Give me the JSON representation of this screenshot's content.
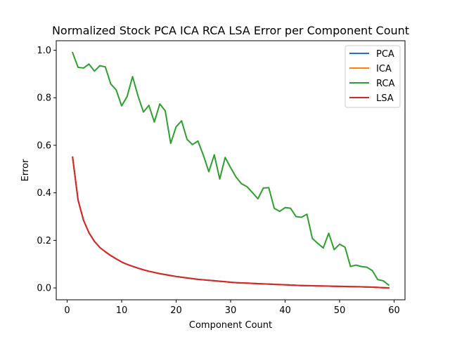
{
  "chart_data": {
    "type": "line",
    "title": "Normalized Stock PCA ICA RCA LSA Error per Component Count",
    "xlabel": "Component Count",
    "ylabel": "Error",
    "xlim": [
      -2.0,
      62.0
    ],
    "ylim": [
      -0.05,
      1.04
    ],
    "xticks": [
      0,
      10,
      20,
      30,
      40,
      50,
      60
    ],
    "yticks": [
      0.0,
      0.2,
      0.4,
      0.6,
      0.8,
      1.0
    ],
    "xtick_labels": [
      "0",
      "10",
      "20",
      "30",
      "40",
      "50",
      "60"
    ],
    "ytick_labels": [
      "0.0",
      "0.2",
      "0.4",
      "0.6",
      "0.8",
      "1.0"
    ],
    "legend_position": "top-right",
    "grid": false,
    "x": [
      1,
      2,
      3,
      4,
      5,
      6,
      7,
      8,
      9,
      10,
      11,
      12,
      13,
      14,
      15,
      16,
      17,
      18,
      19,
      20,
      21,
      22,
      23,
      24,
      25,
      26,
      27,
      28,
      29,
      30,
      31,
      32,
      33,
      34,
      35,
      36,
      37,
      38,
      39,
      40,
      41,
      42,
      43,
      44,
      45,
      46,
      47,
      48,
      49,
      50,
      51,
      52,
      53,
      54,
      55,
      56,
      57,
      58,
      59
    ],
    "series": [
      {
        "name": "PCA",
        "color": "#1f77b4",
        "values": [
          0.55,
          0.37,
          0.285,
          0.232,
          0.196,
          0.17,
          0.152,
          0.136,
          0.122,
          0.109,
          0.099,
          0.091,
          0.083,
          0.076,
          0.07,
          0.065,
          0.06,
          0.056,
          0.052,
          0.048,
          0.045,
          0.042,
          0.039,
          0.036,
          0.034,
          0.032,
          0.03,
          0.028,
          0.026,
          0.024,
          0.022,
          0.021,
          0.02,
          0.019,
          0.018,
          0.017,
          0.016,
          0.015,
          0.014,
          0.013,
          0.012,
          0.011,
          0.01,
          0.0095,
          0.009,
          0.0085,
          0.008,
          0.0075,
          0.007,
          0.0065,
          0.006,
          0.0055,
          0.005,
          0.0045,
          0.004,
          0.003,
          0.002,
          0.001,
          0.0
        ]
      },
      {
        "name": "ICA",
        "color": "#ff7f0e",
        "values": [
          0.55,
          0.37,
          0.285,
          0.232,
          0.196,
          0.17,
          0.152,
          0.136,
          0.122,
          0.109,
          0.099,
          0.091,
          0.083,
          0.076,
          0.07,
          0.065,
          0.06,
          0.056,
          0.052,
          0.048,
          0.045,
          0.042,
          0.039,
          0.036,
          0.034,
          0.032,
          0.03,
          0.028,
          0.026,
          0.024,
          0.022,
          0.021,
          0.02,
          0.019,
          0.018,
          0.017,
          0.016,
          0.015,
          0.014,
          0.013,
          0.012,
          0.011,
          0.01,
          0.0095,
          0.009,
          0.0085,
          0.008,
          0.0075,
          0.007,
          0.0065,
          0.006,
          0.0055,
          0.005,
          0.0045,
          0.004,
          0.003,
          0.002,
          0.001,
          0.0
        ]
      },
      {
        "name": "RCA",
        "color": "#2ca02c",
        "values": [
          0.99,
          0.928,
          0.925,
          0.942,
          0.912,
          0.935,
          0.93,
          0.858,
          0.833,
          0.766,
          0.805,
          0.889,
          0.808,
          0.74,
          0.768,
          0.698,
          0.774,
          0.745,
          0.608,
          0.678,
          0.703,
          0.625,
          0.603,
          0.618,
          0.558,
          0.489,
          0.56,
          0.458,
          0.549,
          0.506,
          0.466,
          0.438,
          0.426,
          0.401,
          0.375,
          0.42,
          0.422,
          0.335,
          0.322,
          0.338,
          0.335,
          0.3,
          0.297,
          0.31,
          0.208,
          0.187,
          0.168,
          0.23,
          0.161,
          0.184,
          0.171,
          0.09,
          0.096,
          0.09,
          0.087,
          0.073,
          0.035,
          0.03,
          0.012
        ]
      },
      {
        "name": "LSA",
        "color": "#d62728",
        "values": [
          0.55,
          0.37,
          0.285,
          0.232,
          0.196,
          0.17,
          0.152,
          0.136,
          0.122,
          0.109,
          0.099,
          0.091,
          0.083,
          0.076,
          0.07,
          0.065,
          0.06,
          0.056,
          0.052,
          0.048,
          0.045,
          0.042,
          0.039,
          0.036,
          0.034,
          0.032,
          0.03,
          0.028,
          0.026,
          0.024,
          0.022,
          0.021,
          0.02,
          0.019,
          0.018,
          0.017,
          0.016,
          0.015,
          0.014,
          0.013,
          0.012,
          0.011,
          0.01,
          0.0095,
          0.009,
          0.0085,
          0.008,
          0.0075,
          0.007,
          0.0065,
          0.006,
          0.0055,
          0.005,
          0.0045,
          0.004,
          0.003,
          0.002,
          0.001,
          0.0
        ]
      }
    ]
  }
}
